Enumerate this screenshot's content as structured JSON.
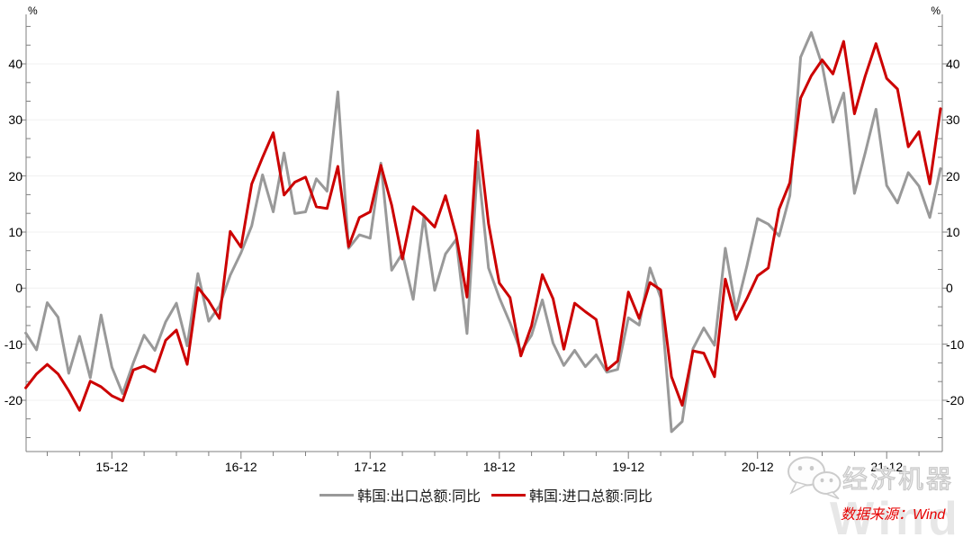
{
  "page": {
    "background": "#ffffff"
  },
  "axes": {
    "y_unit_left": "%",
    "y_unit_right": "%",
    "axis_color": "#7f7f7f",
    "grid_color": "#f0f0f0",
    "label_color": "#000000"
  },
  "chart_data": {
    "type": "line",
    "title": "",
    "xlabel": "",
    "ylabel": "%",
    "grid": "horizontal-light",
    "legend_position": "bottom-center",
    "ylim": [
      -29,
      48.8
    ],
    "y_ticks": [
      40,
      30,
      20,
      10,
      0,
      -10,
      -20
    ],
    "x_major_tick_labels": [
      "15-12",
      "16-12",
      "17-12",
      "18-12",
      "19-12",
      "20-12",
      "21-12"
    ],
    "x_major_tick_indices": [
      8,
      20,
      32,
      44,
      56,
      68,
      80
    ],
    "x_labels": [
      "15-04",
      "15-05",
      "15-06",
      "15-07",
      "15-08",
      "15-09",
      "15-10",
      "15-11",
      "15-12",
      "16-01",
      "16-02",
      "16-03",
      "16-04",
      "16-05",
      "16-06",
      "16-07",
      "16-08",
      "16-09",
      "16-10",
      "16-11",
      "16-12",
      "17-01",
      "17-02",
      "17-03",
      "17-04",
      "17-05",
      "17-06",
      "17-07",
      "17-08",
      "17-09",
      "17-10",
      "17-11",
      "17-12",
      "18-01",
      "18-02",
      "18-03",
      "18-04",
      "18-05",
      "18-06",
      "18-07",
      "18-08",
      "18-09",
      "18-10",
      "18-11",
      "18-12",
      "19-01",
      "19-02",
      "19-03",
      "19-04",
      "19-05",
      "19-06",
      "19-07",
      "19-08",
      "19-09",
      "19-10",
      "19-11",
      "19-12",
      "20-01",
      "20-02",
      "20-03",
      "20-04",
      "20-05",
      "20-06",
      "20-07",
      "20-08",
      "20-09",
      "20-10",
      "20-11",
      "20-12",
      "21-01",
      "21-02",
      "21-03",
      "21-04",
      "21-05",
      "21-06",
      "21-07",
      "21-08",
      "21-09",
      "21-10",
      "21-11",
      "21-12",
      "22-01",
      "22-02",
      "22-03",
      "22-04",
      "22-05"
    ],
    "series": [
      {
        "name": "韩国:出口总额:同比",
        "color": "#999999",
        "values": [
          -8.0,
          -11.0,
          -2.6,
          -5.2,
          -15.2,
          -8.6,
          -16.0,
          -4.8,
          -14.1,
          -18.8,
          -13.3,
          -8.4,
          -11.1,
          -6.0,
          -2.7,
          -10.3,
          2.6,
          -5.9,
          -3.2,
          2.3,
          6.3,
          11.1,
          20.2,
          13.6,
          24.1,
          13.3,
          13.6,
          19.5,
          17.3,
          35.0,
          7.1,
          9.5,
          8.9,
          22.3,
          3.2,
          6.2,
          -2.0,
          12.8,
          -0.4,
          6.1,
          8.7,
          -8.1,
          22.5,
          3.6,
          -1.7,
          -6.2,
          -11.3,
          -8.4,
          -2.1,
          -9.8,
          -13.8,
          -11.1,
          -14.0,
          -11.9,
          -15.0,
          -14.5,
          -5.3,
          -6.6,
          3.6,
          -1.7,
          -25.6,
          -23.8,
          -10.8,
          -7.1,
          -10.2,
          7.1,
          -3.9,
          3.9,
          12.4,
          11.4,
          9.3,
          16.5,
          41.2,
          45.6,
          39.8,
          29.6,
          34.8,
          16.9,
          24.1,
          31.9,
          18.3,
          15.2,
          20.6,
          18.2,
          12.6,
          21.3
        ]
      },
      {
        "name": "韩国:进口总额:同比",
        "color": "#cc0000",
        "values": [
          -17.8,
          -15.3,
          -13.6,
          -15.3,
          -18.3,
          -21.8,
          -16.6,
          -17.6,
          -19.2,
          -20.1,
          -14.6,
          -13.9,
          -14.9,
          -9.3,
          -7.5,
          -13.6,
          0.1,
          -2.3,
          -5.4,
          10.1,
          7.3,
          18.6,
          23.3,
          27.7,
          16.6,
          18.9,
          19.8,
          14.5,
          14.2,
          21.7,
          7.4,
          12.6,
          13.6,
          21.9,
          14.8,
          5.2,
          14.5,
          12.9,
          10.9,
          16.5,
          9.4,
          -1.6,
          28.1,
          11.5,
          0.9,
          -1.7,
          -12.1,
          -6.7,
          2.4,
          -1.9,
          -10.9,
          -2.7,
          -4.2,
          -5.6,
          -14.6,
          -13.0,
          -0.7,
          -5.4,
          1.0,
          -0.3,
          -15.8,
          -20.9,
          -11.2,
          -11.6,
          -15.8,
          1.6,
          -5.6,
          -1.9,
          2.2,
          3.6,
          14.1,
          18.8,
          33.9,
          37.9,
          40.7,
          38.2,
          44.0,
          31.1,
          37.8,
          43.6,
          37.4,
          35.5,
          25.2,
          27.9,
          18.6,
          32.0
        ]
      }
    ]
  },
  "footer": {
    "source": "数据来源：Wind",
    "brand": "经济机器",
    "watermark": "Wind"
  }
}
